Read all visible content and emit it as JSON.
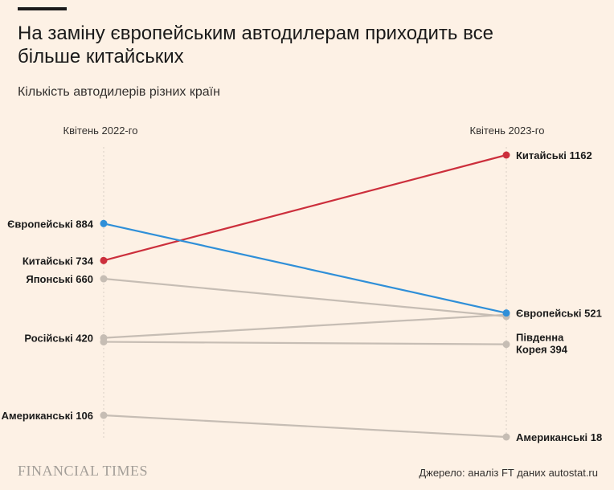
{
  "header": {
    "title": "На заміну європейським автодилерам приходить все більше китайських",
    "subtitle": "Кількість автодилерів різних країн"
  },
  "footer": {
    "logo": "FINANCIAL TIMES",
    "source": "Джерело: аналіз FT даних autostat.ru"
  },
  "colors": {
    "background": "#fdf1e5",
    "chinese": "#cc2f3c",
    "european": "#2f8fd8",
    "other": "#c6bdb4",
    "axis": "#d9cfc5"
  },
  "chart_data": {
    "type": "line",
    "subtype": "slope",
    "categories": [
      "Квітень 2022-го",
      "Квітень 2023-го"
    ],
    "series": [
      {
        "name": "Китайські",
        "values": [
          734,
          1162
        ],
        "color": "#cc2f3c",
        "highlight": true,
        "left_label": "Китайські 734",
        "right_label": "Китайські 1162"
      },
      {
        "name": "Європейські",
        "values": [
          884,
          521
        ],
        "color": "#2f8fd8",
        "highlight": true,
        "left_label": "Європейські 884",
        "right_label": "Європейські 521"
      },
      {
        "name": "Японські",
        "values": [
          660,
          507
        ],
        "color": "#c6bdb4",
        "highlight": false,
        "left_label": "Японські 660",
        "right_label": ""
      },
      {
        "name": "Російські",
        "values": [
          420,
          514
        ],
        "color": "#c6bdb4",
        "highlight": false,
        "left_label": "Російські 420",
        "right_label": ""
      },
      {
        "name": "Південна Корея",
        "values": [
          404,
          394
        ],
        "color": "#c6bdb4",
        "highlight": false,
        "left_label": "",
        "right_label": "Південна Корея 394"
      },
      {
        "name": "Американські",
        "values": [
          106,
          18
        ],
        "color": "#c6bdb4",
        "highlight": false,
        "left_label": "Американські 106",
        "right_label": "Американські 18"
      }
    ],
    "ylim": [
      0,
      1200
    ],
    "grid": false
  }
}
